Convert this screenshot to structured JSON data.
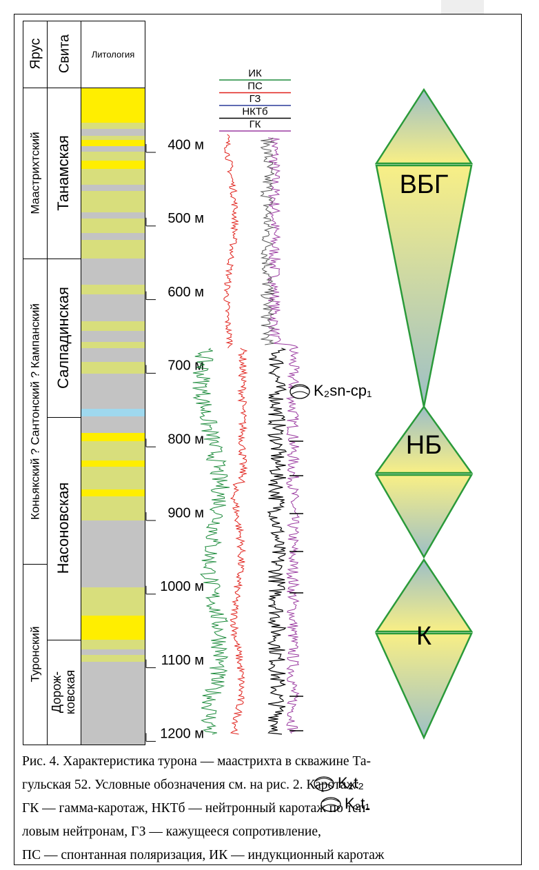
{
  "columns": {
    "stage": "Ярус",
    "suite": "Свита",
    "lithology": "Литология"
  },
  "stages": [
    "Маастрихтский",
    "Коньякский ? Сантонский ? Кампанский",
    "Туронский"
  ],
  "suites": [
    [
      "Танамская"
    ],
    [
      "Салпадинская"
    ],
    [
      "Насоновская"
    ],
    [
      "Дорож-",
      "ковская"
    ]
  ],
  "depths": [
    "400 м",
    "500 м",
    "600 м",
    "700 м",
    "800 м",
    "900 м",
    "1000 м",
    "1100 м",
    "1200 м"
  ],
  "log_legend": [
    "ИК",
    "ПС",
    "ГЗ",
    "НКТб",
    "ГК"
  ],
  "ages": [
    "K₂sn-cp₁",
    "K₂t₂",
    "K₂t₁"
  ],
  "cycles": [
    "ВБГ",
    "НБ",
    "К"
  ],
  "caption": [
    "Рис. 4. Характеристика турона — маастрихта в скважине Та-",
    "гульская 52. Условные обозначения см. на рис. 2. Каротаж:",
    "ГК — гамма-каротаж, НКТб — нейтронный каротаж по теп-",
    "ловым нейтронам, ГЗ — кажущееся сопротивление,",
    "ПС — спонтанная поляризация, ИК — индукционный каротаж"
  ]
}
